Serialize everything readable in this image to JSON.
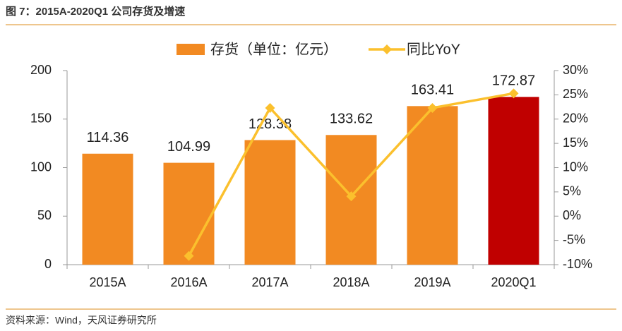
{
  "chart_data": {
    "type": "bar_line",
    "title": "图 7：2015A-2020Q1 公司存货及增速",
    "source": "资料来源：Wind，天风证券研究所",
    "categories": [
      "2015A",
      "2016A",
      "2017A",
      "2018A",
      "2019A",
      "2020Q1"
    ],
    "series": [
      {
        "name": "存货（单位：亿元）",
        "type": "bar",
        "color": "#f28a22",
        "point_colors": [
          "#f28a22",
          "#f28a22",
          "#f28a22",
          "#f28a22",
          "#f28a22",
          "#c00000"
        ],
        "values": [
          114.36,
          104.99,
          128.38,
          133.62,
          163.41,
          172.87
        ]
      },
      {
        "name": "同比YoY",
        "type": "line",
        "axis": "y2",
        "color": "#fbc02d",
        "values": [
          null,
          -8.2,
          22.3,
          4.1,
          22.3,
          25.3
        ]
      }
    ],
    "ylim": [
      0,
      200
    ],
    "yticks": [
      0,
      50,
      100,
      150,
      200
    ],
    "y2lim": [
      -10,
      30
    ],
    "y2ticks": [
      {
        "value": -10,
        "label": "-10%"
      },
      {
        "value": -5,
        "label": "-5%"
      },
      {
        "value": 0,
        "label": "0%"
      },
      {
        "value": 5,
        "label": "5%"
      },
      {
        "value": 10,
        "label": "10%"
      },
      {
        "value": 15,
        "label": "15%"
      },
      {
        "value": 20,
        "label": "20%"
      },
      {
        "value": 25,
        "label": "25%"
      },
      {
        "value": 30,
        "label": "30%"
      }
    ],
    "legend": "top"
  }
}
